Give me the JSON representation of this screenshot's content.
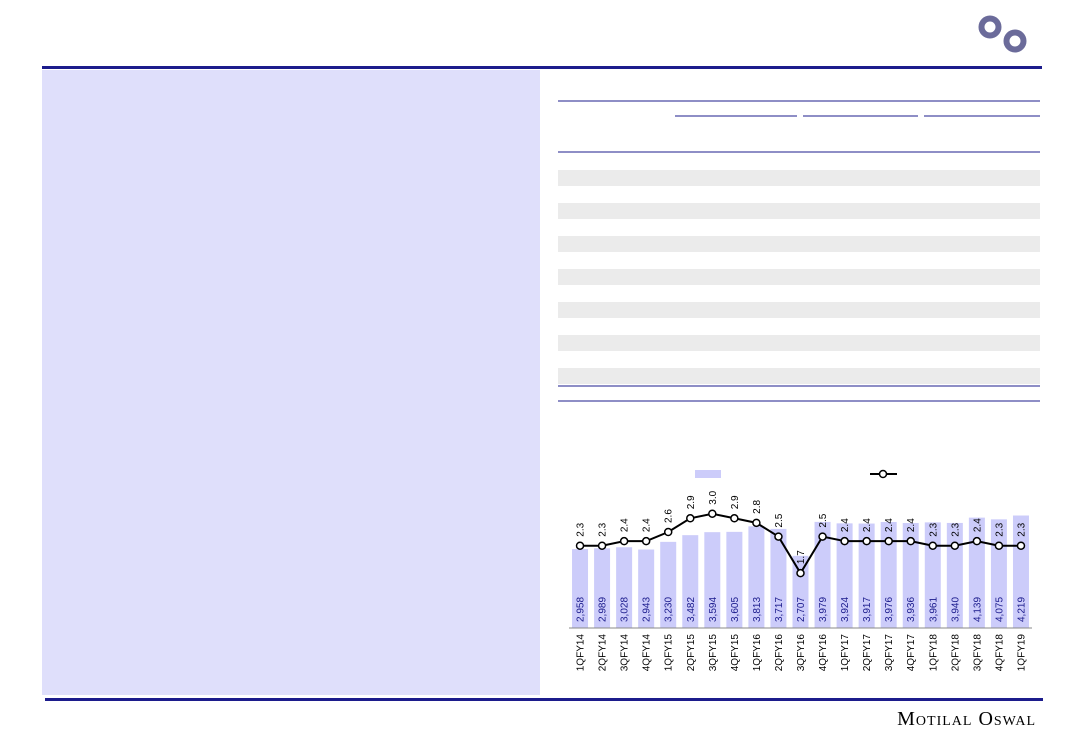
{
  "footer": {
    "brand": "Motilal Oswal"
  },
  "chart_data": {
    "type": "bar-line",
    "categories": [
      "1QFY14",
      "2QFY14",
      "3QFY14",
      "4QFY14",
      "1QFY15",
      "2QFY15",
      "3QFY15",
      "4QFY15",
      "1QFY16",
      "2QFY16",
      "3QFY16",
      "4QFY16",
      "1QFY17",
      "2QFY17",
      "3QFY17",
      "4QFY17",
      "1QFY18",
      "2QFY18",
      "3QFY18",
      "4QFY18",
      "1QFY19"
    ],
    "series": [
      {
        "color": "#ccccfa",
        "values": [
          2958,
          2989,
          3028,
          2943,
          3230,
          3482,
          3594,
          3605,
          3813,
          3717,
          2707,
          3979,
          3924,
          3917,
          3976,
          3936,
          3961,
          3940,
          4139,
          4075,
          4219
        ],
        "value_labels": [
          "2,958",
          "2,989",
          "3,028",
          "2,943",
          "3,230",
          "3,482",
          "3,594",
          "3,605",
          "3,813",
          "3,717",
          "2,707",
          "3,979",
          "3,924",
          "3,917",
          "3,976",
          "3,936",
          "3,961",
          "3,940",
          "4,139",
          "4,075",
          "4,219"
        ]
      },
      {
        "color": "#000000",
        "axis": "y2",
        "values": [
          2.3,
          2.3,
          2.4,
          2.4,
          2.6,
          2.9,
          3.0,
          2.9,
          2.8,
          2.5,
          1.7,
          2.5,
          2.4,
          2.4,
          2.4,
          2.4,
          2.3,
          2.3,
          2.4,
          2.3,
          2.3
        ],
        "value_labels": [
          "2.3",
          "2.3",
          "2.4",
          "2.4",
          "2.6",
          "2.9",
          "3.0",
          "2.9",
          "2.8",
          "2.5",
          "1.7",
          "2.5",
          "2.4",
          "2.4",
          "2.4",
          "2.4",
          "2.3",
          "2.3",
          "2.4",
          "2.3",
          "2.3"
        ]
      }
    ],
    "ylim": [
      0,
      6000
    ],
    "y2lim": [
      0.5,
      4
    ]
  }
}
